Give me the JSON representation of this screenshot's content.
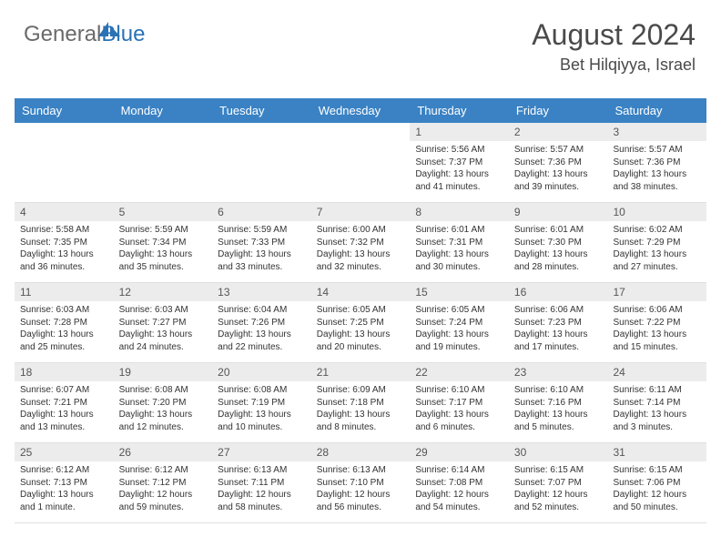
{
  "logo": {
    "part1": "General",
    "part2": "Blue"
  },
  "title": "August 2024",
  "location": "Bet Hilqiyya, Israel",
  "colors": {
    "header_bg": "#3a82c4",
    "header_text": "#ffffff",
    "band_bg": "#ececec",
    "logo_gray": "#6a6a6a",
    "logo_blue": "#2a72b5",
    "title_color": "#4a4a4a",
    "cell_text": "#333333",
    "border": "#e0e0e0",
    "page_bg": "#ffffff"
  },
  "typography": {
    "title_fontsize": 32,
    "location_fontsize": 18,
    "header_fontsize": 13,
    "daynum_fontsize": 12,
    "body_fontsize": 10,
    "logo_fontsize": 24
  },
  "day_headers": [
    "Sunday",
    "Monday",
    "Tuesday",
    "Wednesday",
    "Thursday",
    "Friday",
    "Saturday"
  ],
  "weeks": [
    [
      {
        "empty": true
      },
      {
        "empty": true
      },
      {
        "empty": true
      },
      {
        "empty": true
      },
      {
        "n": "1",
        "sr": "Sunrise: 5:56 AM",
        "ss": "Sunset: 7:37 PM",
        "dl": "Daylight: 13 hours and 41 minutes."
      },
      {
        "n": "2",
        "sr": "Sunrise: 5:57 AM",
        "ss": "Sunset: 7:36 PM",
        "dl": "Daylight: 13 hours and 39 minutes."
      },
      {
        "n": "3",
        "sr": "Sunrise: 5:57 AM",
        "ss": "Sunset: 7:36 PM",
        "dl": "Daylight: 13 hours and 38 minutes."
      }
    ],
    [
      {
        "n": "4",
        "sr": "Sunrise: 5:58 AM",
        "ss": "Sunset: 7:35 PM",
        "dl": "Daylight: 13 hours and 36 minutes."
      },
      {
        "n": "5",
        "sr": "Sunrise: 5:59 AM",
        "ss": "Sunset: 7:34 PM",
        "dl": "Daylight: 13 hours and 35 minutes."
      },
      {
        "n": "6",
        "sr": "Sunrise: 5:59 AM",
        "ss": "Sunset: 7:33 PM",
        "dl": "Daylight: 13 hours and 33 minutes."
      },
      {
        "n": "7",
        "sr": "Sunrise: 6:00 AM",
        "ss": "Sunset: 7:32 PM",
        "dl": "Daylight: 13 hours and 32 minutes."
      },
      {
        "n": "8",
        "sr": "Sunrise: 6:01 AM",
        "ss": "Sunset: 7:31 PM",
        "dl": "Daylight: 13 hours and 30 minutes."
      },
      {
        "n": "9",
        "sr": "Sunrise: 6:01 AM",
        "ss": "Sunset: 7:30 PM",
        "dl": "Daylight: 13 hours and 28 minutes."
      },
      {
        "n": "10",
        "sr": "Sunrise: 6:02 AM",
        "ss": "Sunset: 7:29 PM",
        "dl": "Daylight: 13 hours and 27 minutes."
      }
    ],
    [
      {
        "n": "11",
        "sr": "Sunrise: 6:03 AM",
        "ss": "Sunset: 7:28 PM",
        "dl": "Daylight: 13 hours and 25 minutes."
      },
      {
        "n": "12",
        "sr": "Sunrise: 6:03 AM",
        "ss": "Sunset: 7:27 PM",
        "dl": "Daylight: 13 hours and 24 minutes."
      },
      {
        "n": "13",
        "sr": "Sunrise: 6:04 AM",
        "ss": "Sunset: 7:26 PM",
        "dl": "Daylight: 13 hours and 22 minutes."
      },
      {
        "n": "14",
        "sr": "Sunrise: 6:05 AM",
        "ss": "Sunset: 7:25 PM",
        "dl": "Daylight: 13 hours and 20 minutes."
      },
      {
        "n": "15",
        "sr": "Sunrise: 6:05 AM",
        "ss": "Sunset: 7:24 PM",
        "dl": "Daylight: 13 hours and 19 minutes."
      },
      {
        "n": "16",
        "sr": "Sunrise: 6:06 AM",
        "ss": "Sunset: 7:23 PM",
        "dl": "Daylight: 13 hours and 17 minutes."
      },
      {
        "n": "17",
        "sr": "Sunrise: 6:06 AM",
        "ss": "Sunset: 7:22 PM",
        "dl": "Daylight: 13 hours and 15 minutes."
      }
    ],
    [
      {
        "n": "18",
        "sr": "Sunrise: 6:07 AM",
        "ss": "Sunset: 7:21 PM",
        "dl": "Daylight: 13 hours and 13 minutes."
      },
      {
        "n": "19",
        "sr": "Sunrise: 6:08 AM",
        "ss": "Sunset: 7:20 PM",
        "dl": "Daylight: 13 hours and 12 minutes."
      },
      {
        "n": "20",
        "sr": "Sunrise: 6:08 AM",
        "ss": "Sunset: 7:19 PM",
        "dl": "Daylight: 13 hours and 10 minutes."
      },
      {
        "n": "21",
        "sr": "Sunrise: 6:09 AM",
        "ss": "Sunset: 7:18 PM",
        "dl": "Daylight: 13 hours and 8 minutes."
      },
      {
        "n": "22",
        "sr": "Sunrise: 6:10 AM",
        "ss": "Sunset: 7:17 PM",
        "dl": "Daylight: 13 hours and 6 minutes."
      },
      {
        "n": "23",
        "sr": "Sunrise: 6:10 AM",
        "ss": "Sunset: 7:16 PM",
        "dl": "Daylight: 13 hours and 5 minutes."
      },
      {
        "n": "24",
        "sr": "Sunrise: 6:11 AM",
        "ss": "Sunset: 7:14 PM",
        "dl": "Daylight: 13 hours and 3 minutes."
      }
    ],
    [
      {
        "n": "25",
        "sr": "Sunrise: 6:12 AM",
        "ss": "Sunset: 7:13 PM",
        "dl": "Daylight: 13 hours and 1 minute."
      },
      {
        "n": "26",
        "sr": "Sunrise: 6:12 AM",
        "ss": "Sunset: 7:12 PM",
        "dl": "Daylight: 12 hours and 59 minutes."
      },
      {
        "n": "27",
        "sr": "Sunrise: 6:13 AM",
        "ss": "Sunset: 7:11 PM",
        "dl": "Daylight: 12 hours and 58 minutes."
      },
      {
        "n": "28",
        "sr": "Sunrise: 6:13 AM",
        "ss": "Sunset: 7:10 PM",
        "dl": "Daylight: 12 hours and 56 minutes."
      },
      {
        "n": "29",
        "sr": "Sunrise: 6:14 AM",
        "ss": "Sunset: 7:08 PM",
        "dl": "Daylight: 12 hours and 54 minutes."
      },
      {
        "n": "30",
        "sr": "Sunrise: 6:15 AM",
        "ss": "Sunset: 7:07 PM",
        "dl": "Daylight: 12 hours and 52 minutes."
      },
      {
        "n": "31",
        "sr": "Sunrise: 6:15 AM",
        "ss": "Sunset: 7:06 PM",
        "dl": "Daylight: 12 hours and 50 minutes."
      }
    ]
  ]
}
